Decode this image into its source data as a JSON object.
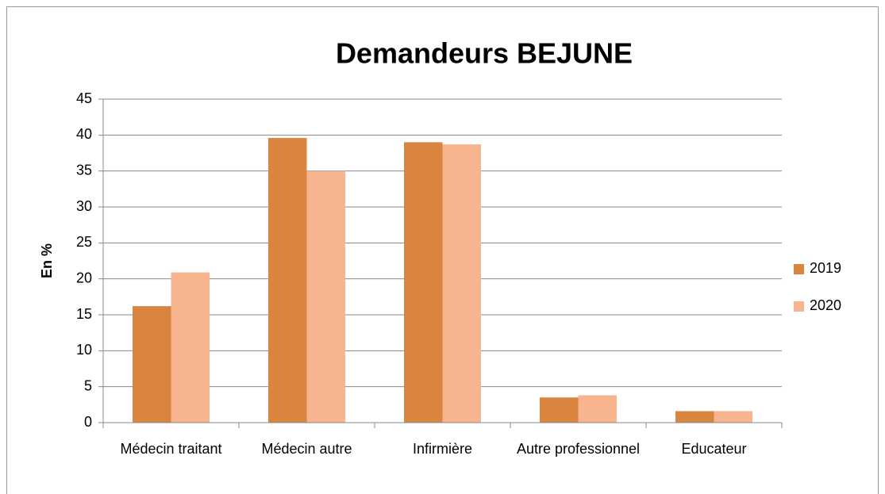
{
  "chart_data": {
    "type": "bar",
    "title": "Demandeurs BEJUNE",
    "ylabel": "En %",
    "categories": [
      "Médecin traitant",
      "Médecin autre",
      "Infirmière",
      "Autre professionnel",
      "Educateur"
    ],
    "series": [
      {
        "name": "2019",
        "color": "#d9843f",
        "values": [
          16.2,
          39.6,
          39.0,
          3.5,
          1.6
        ]
      },
      {
        "name": "2020",
        "color": "#f7b48f",
        "values": [
          20.9,
          35.0,
          38.7,
          3.8,
          1.6
        ]
      }
    ],
    "ylim": [
      0,
      45
    ],
    "yticks": [
      0,
      5,
      10,
      15,
      20,
      25,
      30,
      35,
      40,
      45
    ],
    "grid": true,
    "legend": "right"
  }
}
